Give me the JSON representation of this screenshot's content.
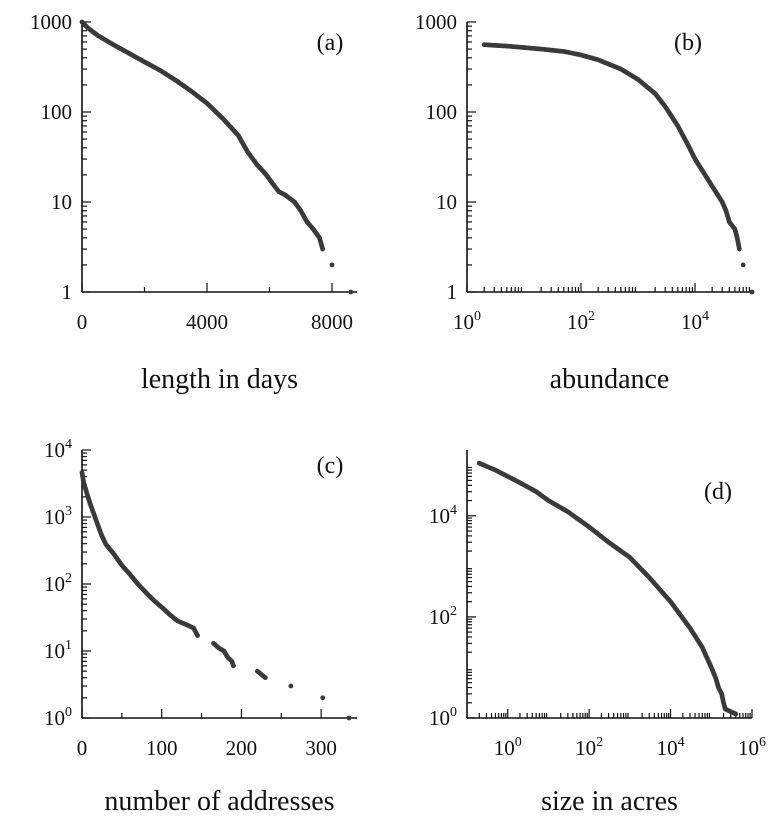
{
  "chart_data": [
    {
      "panel": "(a)",
      "type": "scatter",
      "xlabel": "length in days",
      "ylabel": "",
      "xscale": "linear",
      "yscale": "log",
      "xlim": [
        0,
        8800
      ],
      "ylim": [
        1,
        1000
      ],
      "xticks": [
        0,
        4000,
        8000
      ],
      "xtick_labels": [
        "0",
        "4000",
        "8000"
      ],
      "yticks": [
        1,
        10,
        100,
        1000
      ],
      "ytick_labels": [
        "1",
        "10",
        "100",
        "1000"
      ],
      "grid": false,
      "legend": "none",
      "series": [
        {
          "points": [
            [
              0,
              1000
            ],
            [
              200,
              850
            ],
            [
              500,
              710
            ],
            [
              1000,
              560
            ],
            [
              1500,
              450
            ],
            [
              2000,
              360
            ],
            [
              2500,
              290
            ],
            [
              3000,
              225
            ],
            [
              3500,
              170
            ],
            [
              4000,
              125
            ],
            [
              4500,
              85
            ],
            [
              5000,
              55
            ],
            [
              5300,
              36
            ],
            [
              5600,
              26
            ],
            [
              5900,
              20
            ],
            [
              6100,
              16
            ],
            [
              6300,
              13
            ],
            [
              6500,
              12
            ],
            [
              6800,
              10
            ],
            [
              7000,
              8
            ],
            [
              7200,
              6
            ],
            [
              7400,
              5
            ],
            [
              7600,
              4
            ],
            [
              7700,
              3
            ],
            [
              8000,
              2
            ],
            [
              8600,
              1
            ]
          ]
        }
      ]
    },
    {
      "panel": "(b)",
      "type": "scatter",
      "xlabel": "abundance",
      "ylabel": "",
      "xscale": "log",
      "yscale": "log",
      "xlim": [
        1,
        100000
      ],
      "ylim": [
        1,
        1000
      ],
      "xticks": [
        1,
        100,
        10000
      ],
      "xtick_labels": [
        [
          "10",
          "0"
        ],
        [
          "10",
          "2"
        ],
        [
          "10",
          "4"
        ]
      ],
      "yticks": [
        1,
        10,
        100,
        1000
      ],
      "ytick_labels": [
        "1",
        "10",
        "100",
        "1000"
      ],
      "grid": false,
      "legend": "none",
      "series": [
        {
          "points": [
            [
              2,
              560
            ],
            [
              3,
              550
            ],
            [
              5,
              540
            ],
            [
              10,
              520
            ],
            [
              20,
              500
            ],
            [
              50,
              470
            ],
            [
              100,
              430
            ],
            [
              200,
              380
            ],
            [
              500,
              300
            ],
            [
              1000,
              230
            ],
            [
              2000,
              160
            ],
            [
              3000,
              115
            ],
            [
              5000,
              70
            ],
            [
              8000,
              40
            ],
            [
              10000,
              30
            ],
            [
              15000,
              20
            ],
            [
              20000,
              15
            ],
            [
              25000,
              12
            ],
            [
              30000,
              10
            ],
            [
              35000,
              8
            ],
            [
              40000,
              6
            ],
            [
              50000,
              5
            ],
            [
              55000,
              4
            ],
            [
              60000,
              3
            ],
            [
              70000,
              2
            ],
            [
              100000,
              1
            ]
          ]
        }
      ]
    },
    {
      "panel": "(c)",
      "type": "scatter",
      "xlabel": "number of addresses",
      "ylabel": "",
      "xscale": "linear",
      "yscale": "log",
      "xlim": [
        0,
        345
      ],
      "ylim": [
        1,
        10000
      ],
      "xticks": [
        0,
        100,
        200,
        300
      ],
      "xtick_labels": [
        "0",
        "100",
        "200",
        "300"
      ],
      "yticks": [
        1,
        10,
        100,
        1000,
        10000
      ],
      "ytick_labels": [
        [
          "10",
          "0"
        ],
        [
          "10",
          "1"
        ],
        [
          "10",
          "2"
        ],
        [
          "10",
          "3"
        ],
        [
          "10",
          "4"
        ]
      ],
      "grid": false,
      "legend": "none",
      "series": [
        {
          "points": [
            [
              0,
              4600
            ],
            [
              2,
              3300
            ],
            [
              5,
              2500
            ],
            [
              10,
              1600
            ],
            [
              15,
              1100
            ],
            [
              20,
              750
            ],
            [
              25,
              520
            ],
            [
              30,
              390
            ],
            [
              40,
              280
            ],
            [
              50,
              190
            ],
            [
              60,
              140
            ],
            [
              70,
              100
            ],
            [
              80,
              75
            ],
            [
              90,
              57
            ],
            [
              100,
              45
            ],
            [
              110,
              35
            ],
            [
              120,
              28
            ],
            [
              130,
              25
            ],
            [
              140,
              22
            ],
            [
              145,
              17
            ],
            [
              165,
              13
            ],
            [
              172,
              11
            ],
            [
              178,
              10
            ],
            [
              183,
              8
            ],
            [
              188,
              7
            ],
            [
              190,
              6
            ],
            [
              220,
              5
            ],
            [
              230,
              4
            ],
            [
              262,
              3
            ],
            [
              302,
              2
            ],
            [
              335,
              1
            ]
          ]
        }
      ]
    },
    {
      "panel": "(d)",
      "type": "scatter",
      "xlabel": "size in acres",
      "ylabel": "",
      "xscale": "log",
      "yscale": "log",
      "xlim": [
        0.1,
        1000000
      ],
      "ylim": [
        1,
        200000
      ],
      "xticks": [
        1,
        100,
        10000,
        1000000
      ],
      "xtick_labels": [
        [
          "10",
          "0"
        ],
        [
          "10",
          "2"
        ],
        [
          "10",
          "4"
        ],
        [
          "10",
          "6"
        ]
      ],
      "yticks": [
        1,
        100,
        10000
      ],
      "ytick_labels": [
        [
          "10",
          "0"
        ],
        [
          "10",
          "2"
        ],
        [
          "10",
          "4"
        ]
      ],
      "grid": false,
      "legend": "none",
      "series": [
        {
          "points": [
            [
              0.2,
              110000
            ],
            [
              0.3,
              95000
            ],
            [
              0.5,
              80000
            ],
            [
              1,
              60000
            ],
            [
              2,
              45000
            ],
            [
              5,
              30000
            ],
            [
              10,
              20000
            ],
            [
              30,
              12000
            ],
            [
              100,
              6000
            ],
            [
              300,
              3000
            ],
            [
              1000,
              1500
            ],
            [
              3000,
              600
            ],
            [
              10000,
              200
            ],
            [
              30000,
              60
            ],
            [
              60000,
              25
            ],
            [
              100000,
              10
            ],
            [
              130000,
              6
            ],
            [
              150000,
              4
            ],
            [
              180000,
              3
            ],
            [
              200000,
              2
            ],
            [
              220000,
              1.5
            ],
            [
              400000,
              1.2
            ]
          ]
        }
      ]
    }
  ]
}
